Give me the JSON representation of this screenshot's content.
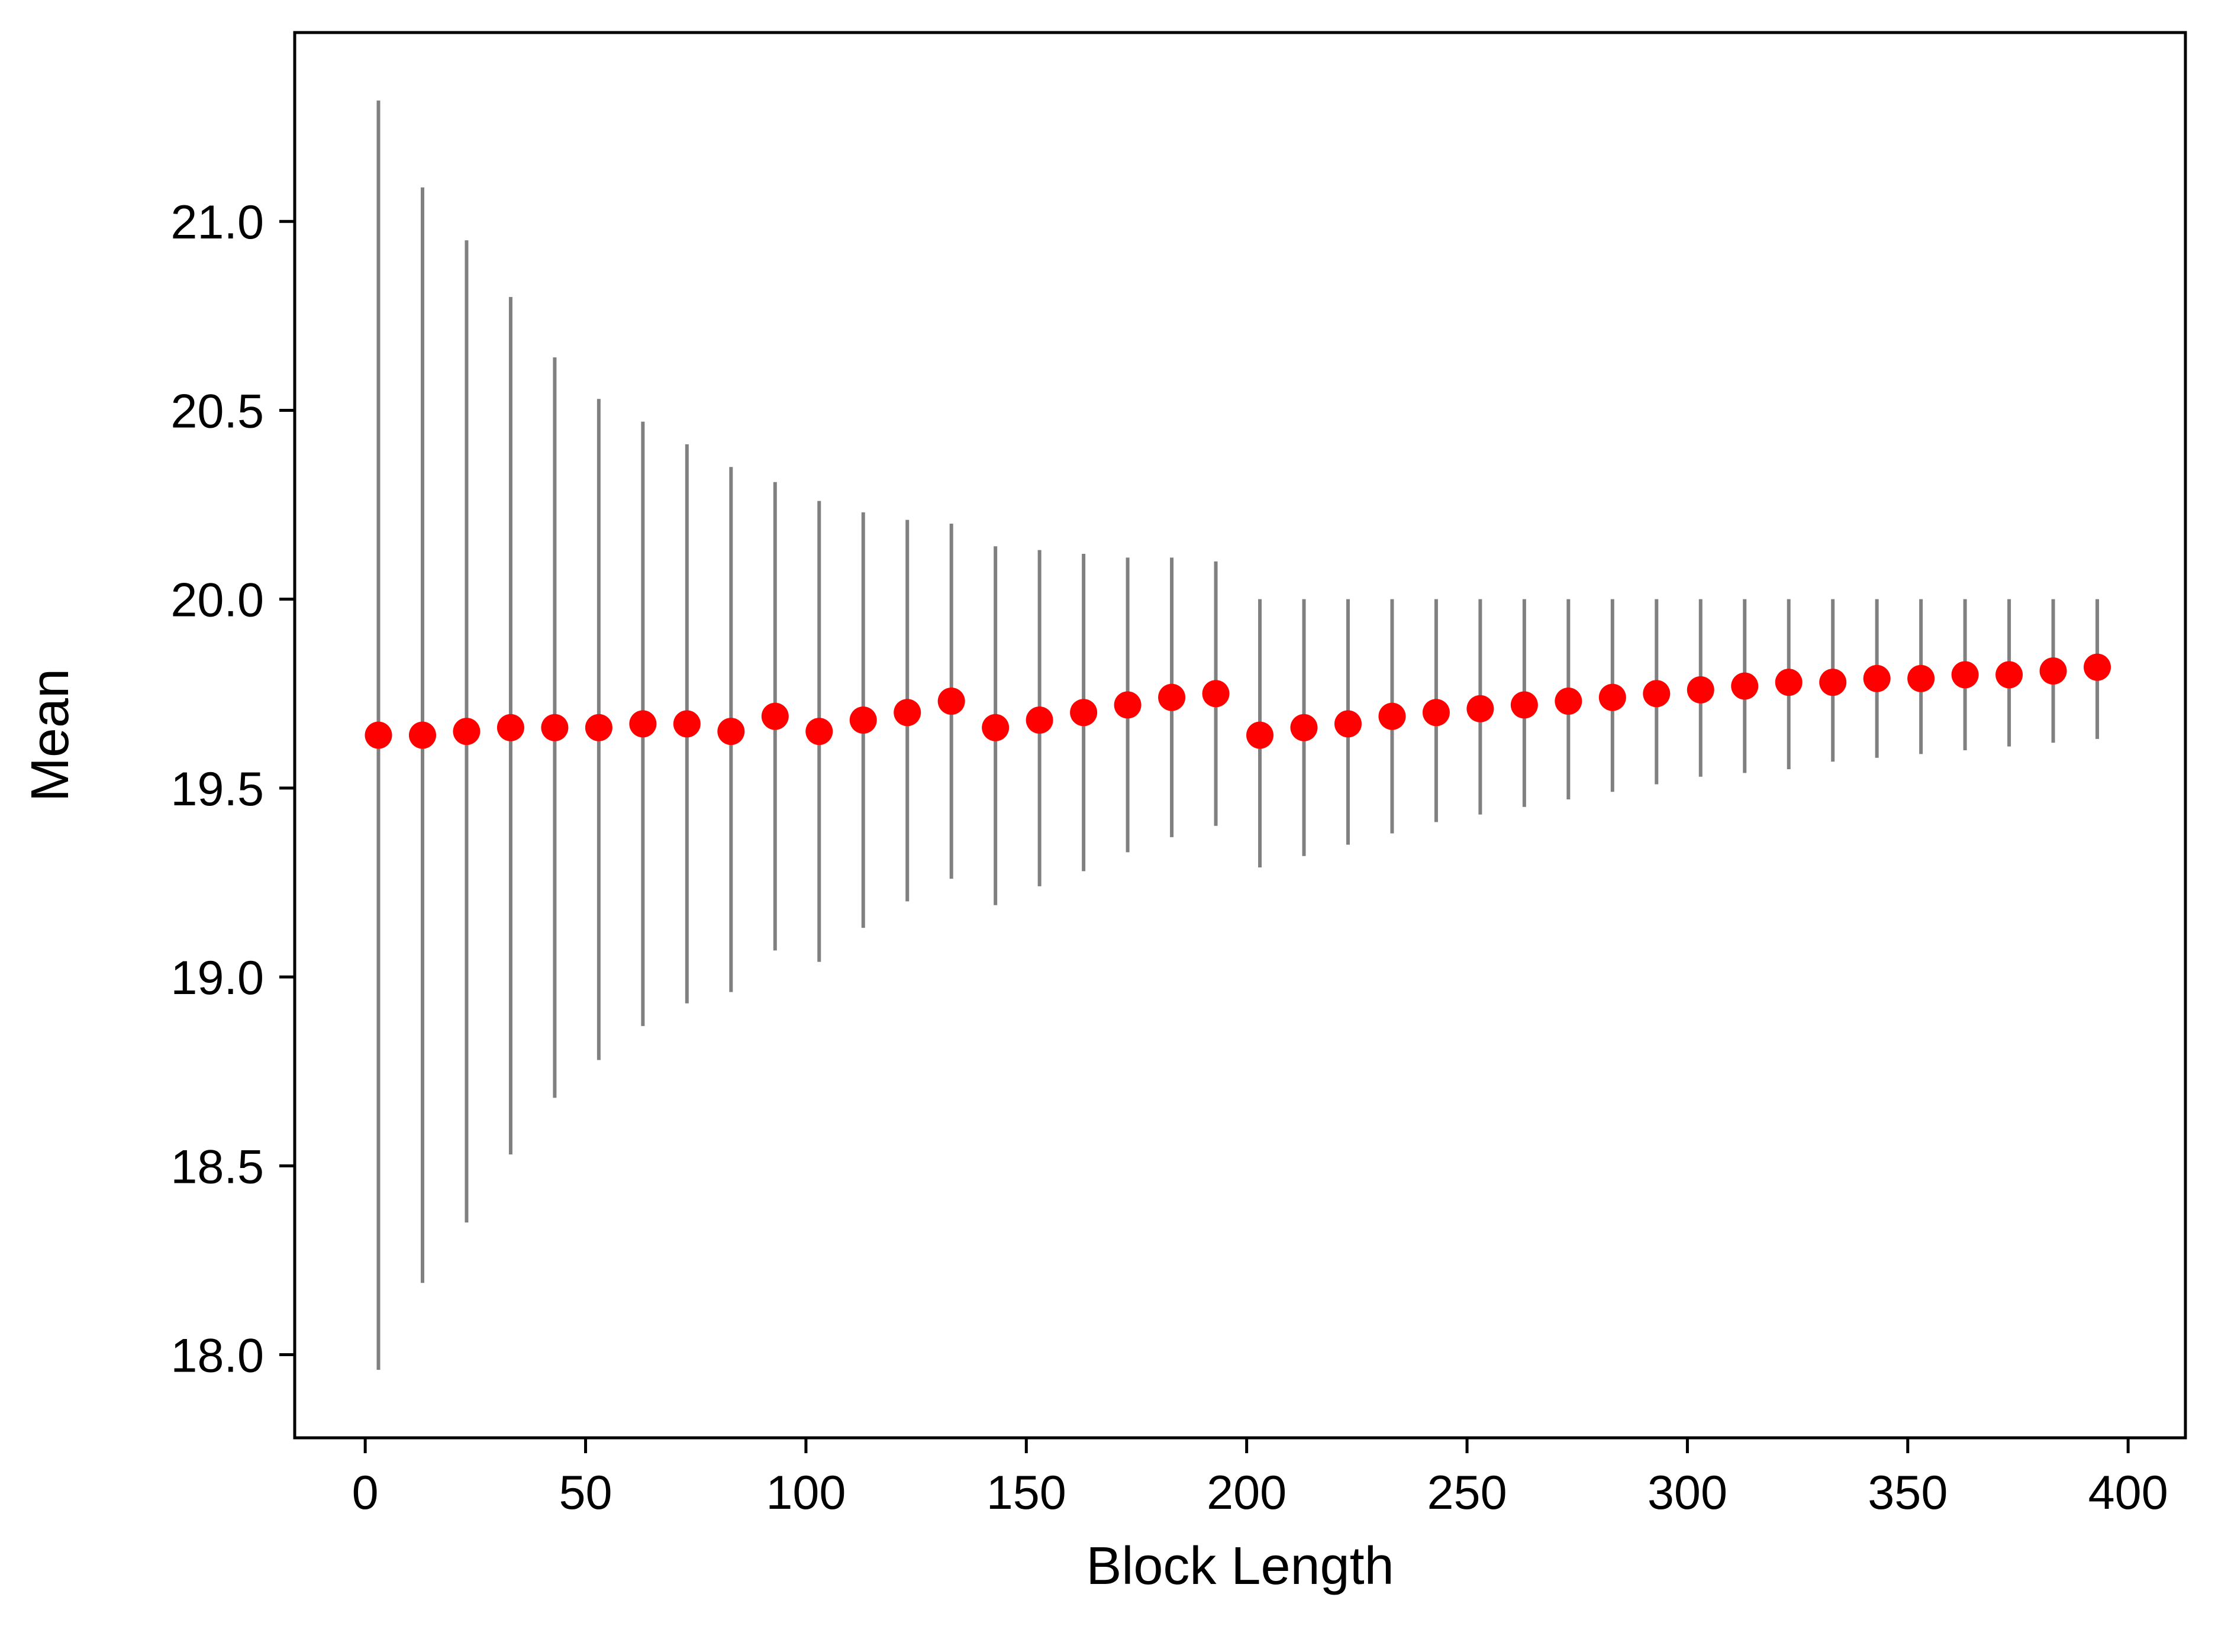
{
  "chart_data": {
    "type": "scatter",
    "title": "",
    "xlabel": "Block Length",
    "ylabel": "Mean",
    "xlim": [
      -16,
      413
    ],
    "ylim": [
      17.78,
      21.5
    ],
    "grid": false,
    "legend": "none",
    "x_ticks": [
      0,
      50,
      100,
      150,
      200,
      250,
      300,
      350,
      400
    ],
    "x_tick_labels": [
      "0",
      "50",
      "100",
      "150",
      "200",
      "250",
      "300",
      "350",
      "400"
    ],
    "y_ticks": [
      18.0,
      18.5,
      19.0,
      19.5,
      20.0,
      20.5,
      21.0
    ],
    "y_tick_labels": [
      "18.0",
      "18.5",
      "19.0",
      "19.5",
      "20.0",
      "20.5",
      "21.0"
    ],
    "marker_color": "#ff0000",
    "errorbar_color": "#808080",
    "series": [
      {
        "x": [
          3,
          13,
          23,
          33,
          43,
          53,
          63,
          73,
          83,
          93,
          103,
          113,
          123,
          133,
          143,
          153,
          163,
          173,
          183,
          193,
          203,
          213,
          223,
          233,
          243,
          253,
          263,
          273,
          283,
          293,
          303,
          313,
          323,
          333,
          343,
          353,
          363,
          373,
          383,
          393
        ],
        "y": [
          19.64,
          19.64,
          19.65,
          19.66,
          19.66,
          19.66,
          19.67,
          19.67,
          19.65,
          19.69,
          19.65,
          19.68,
          19.7,
          19.73,
          19.66,
          19.68,
          19.7,
          19.72,
          19.74,
          19.75,
          19.64,
          19.66,
          19.67,
          19.69,
          19.7,
          19.71,
          19.72,
          19.73,
          19.74,
          19.75,
          19.76,
          19.77,
          19.78,
          19.78,
          19.79,
          19.79,
          19.8,
          19.8,
          19.81,
          19.82
        ],
        "y_lower": [
          17.96,
          18.19,
          18.35,
          18.53,
          18.68,
          18.78,
          18.87,
          18.93,
          18.96,
          19.07,
          19.04,
          19.13,
          19.2,
          19.26,
          19.19,
          19.24,
          19.28,
          19.33,
          19.37,
          19.4,
          19.29,
          19.32,
          19.35,
          19.38,
          19.41,
          19.43,
          19.45,
          19.47,
          19.49,
          19.51,
          19.53,
          19.54,
          19.55,
          19.57,
          19.58,
          19.59,
          19.6,
          19.61,
          19.62,
          19.63
        ],
        "y_upper": [
          21.32,
          21.09,
          20.95,
          20.8,
          20.64,
          20.53,
          20.47,
          20.41,
          20.35,
          20.31,
          20.26,
          20.23,
          20.21,
          20.2,
          20.14,
          20.13,
          20.12,
          20.11,
          20.11,
          20.1,
          20.0,
          20.0,
          20.0,
          20.0,
          20.0,
          20.0,
          20.0,
          20.0,
          20.0,
          20.0,
          20.0,
          20.0,
          20.0,
          20.0,
          20.0,
          20.0,
          20.0,
          20.0,
          20.0,
          20.0
        ]
      }
    ]
  }
}
